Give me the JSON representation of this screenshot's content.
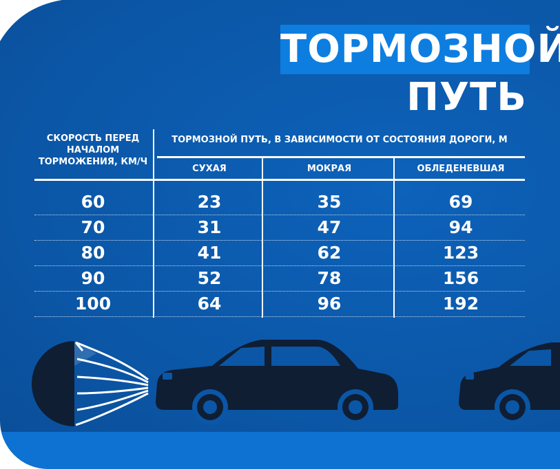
{
  "title": {
    "line1": "ТОРМОЗНОЙ",
    "line2": "ПУТЬ"
  },
  "table": {
    "speed_header": "СКОРОСТЬ ПЕРЕД НАЧАЛОМ ТОРМОЖЕНИЯ, КМ/Ч",
    "distance_header": "ТОРМОЗНОЙ ПУТЬ, В ЗАВИСИМОСТИ ОТ СОСТОЯНИЯ ДОРОГИ, М",
    "columns": [
      "СУХАЯ",
      "МОКРАЯ",
      "ОБЛЕДЕНЕВШАЯ"
    ],
    "rows": [
      {
        "speed": "60",
        "dry": "23",
        "wet": "35",
        "icy": "69"
      },
      {
        "speed": "70",
        "dry": "31",
        "wet": "47",
        "icy": "94"
      },
      {
        "speed": "80",
        "dry": "41",
        "wet": "62",
        "icy": "123"
      },
      {
        "speed": "90",
        "dry": "52",
        "wet": "78",
        "icy": "156"
      },
      {
        "speed": "100",
        "dry": "64",
        "wet": "96",
        "icy": "192"
      }
    ]
  },
  "colors": {
    "background": "#0b56a6",
    "title_box": "#0d7ee0",
    "ground": "#0e72d2",
    "car": "#0f1e33"
  },
  "illustration": {
    "icons": [
      "parachute-icon",
      "car-icon",
      "car-icon"
    ]
  }
}
